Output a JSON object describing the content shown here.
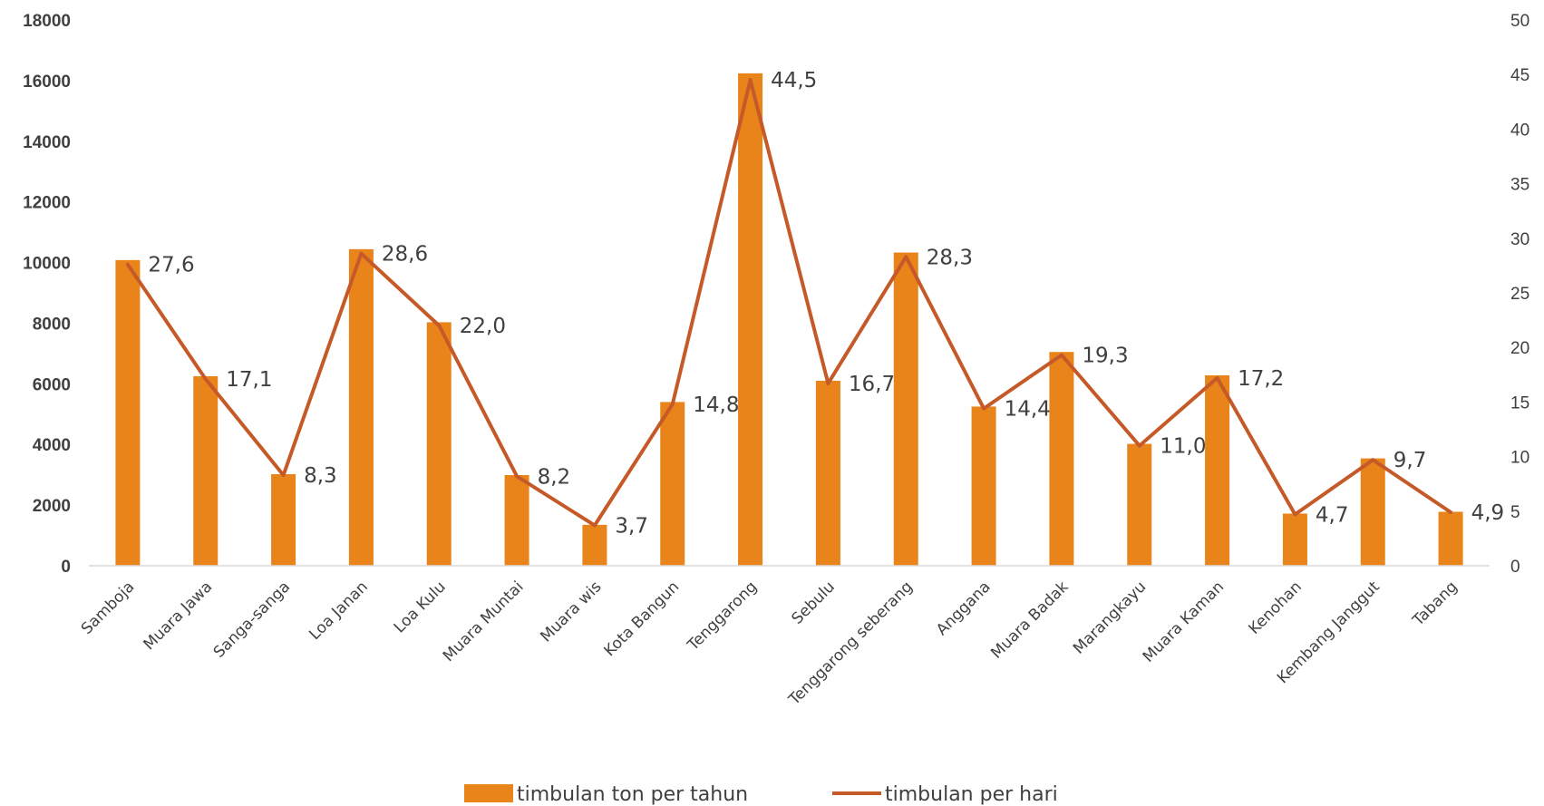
{
  "chart_data": {
    "type": "bar",
    "categories": [
      "Samboja",
      "Muara Jawa",
      "Sanga-sanga",
      "Loa Janan",
      "Loa Kulu",
      "Muara Muntai",
      "Muara wis",
      "Kota Bangun",
      "Tenggarong",
      "Sebulu",
      "Tenggarong seberang",
      "Anggana",
      "Muara Badak",
      "Marangkayu",
      "Muara Kaman",
      "Kenohan",
      "Kembang Janggut",
      "Tabang"
    ],
    "series": [
      {
        "name": "timbulan ton per tahun",
        "type": "bar",
        "axis": "left",
        "color": "#E8841A",
        "values": [
          10080,
          6250,
          3020,
          10440,
          8030,
          2990,
          1350,
          5400,
          16240,
          6100,
          10330,
          5250,
          7050,
          4020,
          6280,
          1720,
          3540,
          1780
        ]
      },
      {
        "name": "timbulan per hari",
        "type": "line",
        "axis": "right",
        "color": "#C55A28",
        "values": [
          27.6,
          17.1,
          8.3,
          28.6,
          22.0,
          8.2,
          3.7,
          14.8,
          44.5,
          16.7,
          28.3,
          14.4,
          19.3,
          11.0,
          17.2,
          4.7,
          9.7,
          4.9
        ],
        "data_labels": [
          "27,6",
          "17,1",
          "8,3",
          "28,6",
          "22,0",
          "8,2",
          "3,7",
          "14,8",
          "44,5",
          "16,7",
          "28,3",
          "14,4",
          "19,3",
          "11,0",
          "17,2",
          "4,7",
          "9,7",
          "4,9"
        ]
      }
    ],
    "y_left": {
      "lim": [
        0,
        18000
      ],
      "ticks": [
        "0",
        "2000",
        "4000",
        "6000",
        "8000",
        "10000",
        "12000",
        "14000",
        "16000",
        "18000"
      ]
    },
    "y_right": {
      "lim": [
        0,
        50
      ],
      "ticks": [
        "0",
        "5",
        "10",
        "15",
        "20",
        "25",
        "30",
        "35",
        "40",
        "45",
        "50"
      ]
    },
    "legend_position": "bottom",
    "grid": false
  }
}
